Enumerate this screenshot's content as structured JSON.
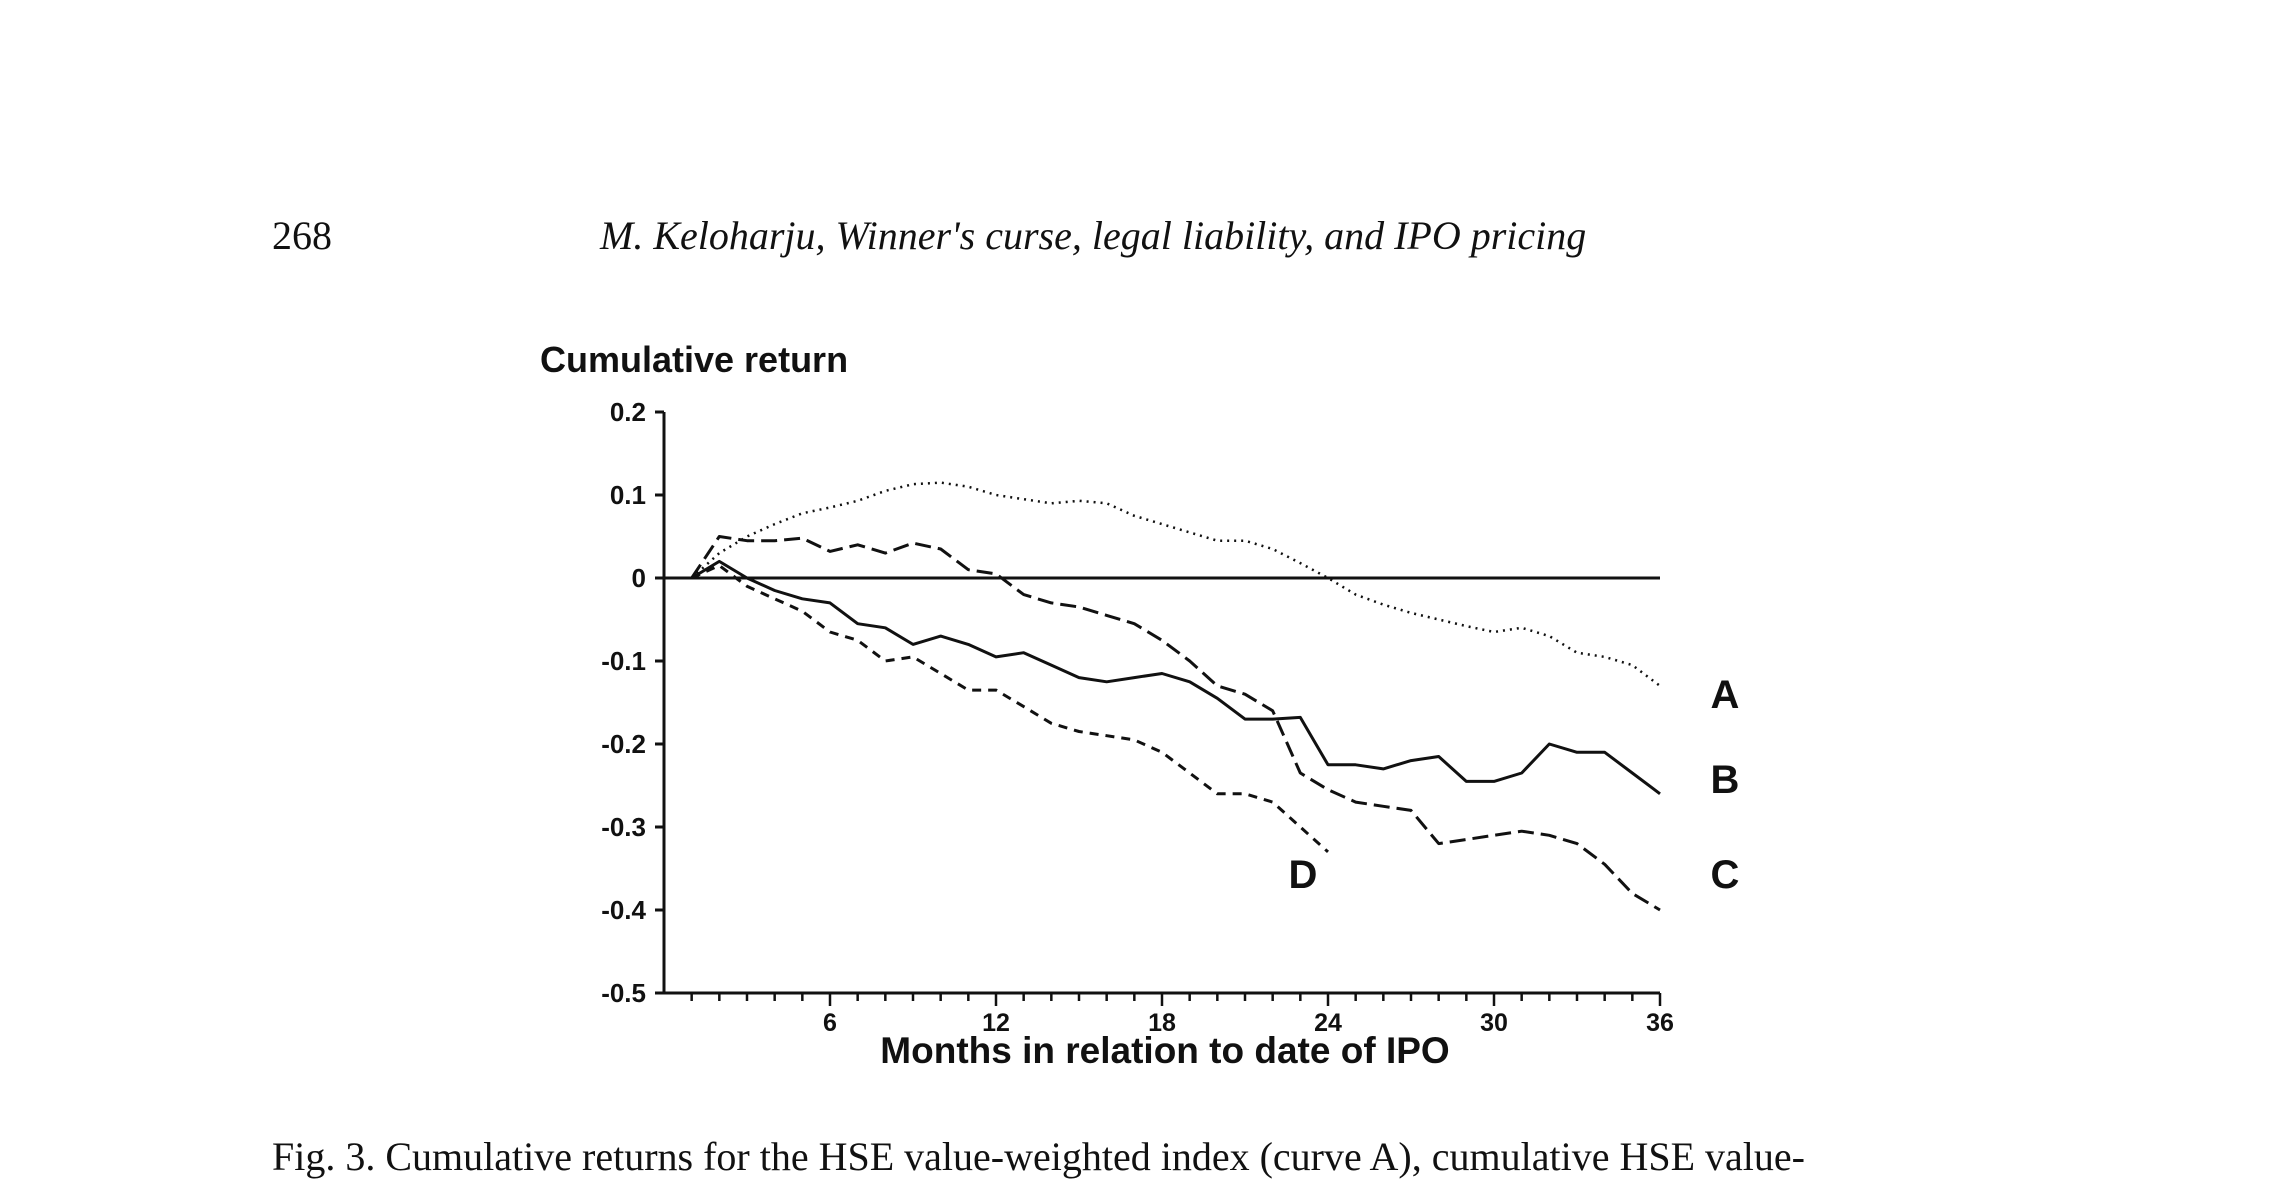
{
  "page": {
    "number": "268",
    "running_header": "M. Keloharju, Winner's curse, legal liability, and IPO pricing",
    "caption_partial": "Fig. 3. Cumulative returns for the HSE value-weighted index (curve A), cumulative HSE value-"
  },
  "chart_data": {
    "type": "line",
    "title": "",
    "ylabel": "Cumulative return",
    "xlabel": "Months in relation to date of IPO",
    "xlim": [
      0,
      36
    ],
    "ylim": [
      -0.5,
      0.2
    ],
    "x_ticks": [
      6,
      12,
      18,
      24,
      30,
      36
    ],
    "x_tick_labels": [
      "6",
      "12",
      "18",
      "24",
      "30",
      "36"
    ],
    "y_ticks": [
      0.2,
      0.1,
      0,
      -0.1,
      -0.2,
      -0.3,
      -0.4,
      -0.5
    ],
    "y_tick_labels": [
      "0.2",
      "0.1",
      "0",
      "-0.1",
      "-0.2",
      "-0.3",
      "-0.4",
      "-0.5"
    ],
    "zero_line": true,
    "grid": false,
    "series": [
      {
        "name": "A",
        "style": "dotted",
        "x": [
          1,
          2,
          3,
          4,
          5,
          6,
          7,
          8,
          9,
          10,
          11,
          12,
          13,
          14,
          15,
          16,
          17,
          18,
          19,
          20,
          21,
          22,
          23,
          24,
          25,
          26,
          27,
          28,
          29,
          30,
          31,
          32,
          33,
          34,
          35,
          36
        ],
        "values": [
          0.0,
          0.03,
          0.05,
          0.065,
          0.078,
          0.085,
          0.093,
          0.105,
          0.113,
          0.115,
          0.11,
          0.1,
          0.095,
          0.09,
          0.093,
          0.09,
          0.075,
          0.065,
          0.055,
          0.045,
          0.045,
          0.035,
          0.018,
          0.0,
          -0.02,
          -0.032,
          -0.042,
          -0.05,
          -0.058,
          -0.065,
          -0.06,
          -0.07,
          -0.09,
          -0.095,
          -0.105,
          -0.13
        ]
      },
      {
        "name": "B",
        "style": "solid",
        "x": [
          1,
          2,
          3,
          4,
          5,
          6,
          7,
          8,
          9,
          10,
          11,
          12,
          13,
          14,
          15,
          16,
          17,
          18,
          19,
          20,
          21,
          22,
          23,
          24,
          25,
          26,
          27,
          28,
          29,
          30,
          31,
          32,
          33,
          34,
          35,
          36
        ],
        "values": [
          0.0,
          0.02,
          0.0,
          -0.015,
          -0.025,
          -0.03,
          -0.055,
          -0.06,
          -0.08,
          -0.07,
          -0.08,
          -0.095,
          -0.09,
          -0.105,
          -0.12,
          -0.125,
          -0.12,
          -0.115,
          -0.125,
          -0.145,
          -0.17,
          -0.17,
          -0.168,
          -0.225,
          -0.225,
          -0.23,
          -0.22,
          -0.215,
          -0.245,
          -0.245,
          -0.235,
          -0.2,
          -0.21,
          -0.21,
          -0.235,
          -0.26
        ]
      },
      {
        "name": "C",
        "style": "dashed",
        "x": [
          1,
          2,
          3,
          4,
          5,
          6,
          7,
          8,
          9,
          10,
          11,
          12,
          13,
          14,
          15,
          16,
          17,
          18,
          19,
          20,
          21,
          22,
          23,
          24,
          25,
          26,
          27,
          28,
          29,
          30,
          31,
          32,
          33,
          34,
          35,
          36
        ],
        "values": [
          0.0,
          0.05,
          0.045,
          0.045,
          0.048,
          0.032,
          0.04,
          0.03,
          0.042,
          0.035,
          0.01,
          0.005,
          -0.02,
          -0.03,
          -0.035,
          -0.045,
          -0.055,
          -0.075,
          -0.1,
          -0.13,
          -0.14,
          -0.16,
          -0.235,
          -0.255,
          -0.27,
          -0.275,
          -0.28,
          -0.32,
          -0.315,
          -0.31,
          -0.305,
          -0.31,
          -0.32,
          -0.345,
          -0.38,
          -0.4
        ]
      },
      {
        "name": "D",
        "style": "short-dashed",
        "x": [
          1,
          2,
          3,
          4,
          5,
          6,
          7,
          8,
          9,
          10,
          11,
          12,
          13,
          14,
          15,
          16,
          17,
          18,
          19,
          20,
          21,
          22,
          23,
          24
        ],
        "values": [
          0.0,
          0.015,
          -0.01,
          -0.025,
          -0.04,
          -0.065,
          -0.075,
          -0.1,
          -0.095,
          -0.115,
          -0.135,
          -0.135,
          -0.155,
          -0.175,
          -0.185,
          -0.19,
          -0.195,
          -0.21,
          -0.235,
          -0.26,
          -0.26,
          -0.27,
          -0.3,
          -0.33
        ]
      }
    ]
  },
  "colors": {
    "ink": "#111111",
    "background": "#ffffff"
  }
}
